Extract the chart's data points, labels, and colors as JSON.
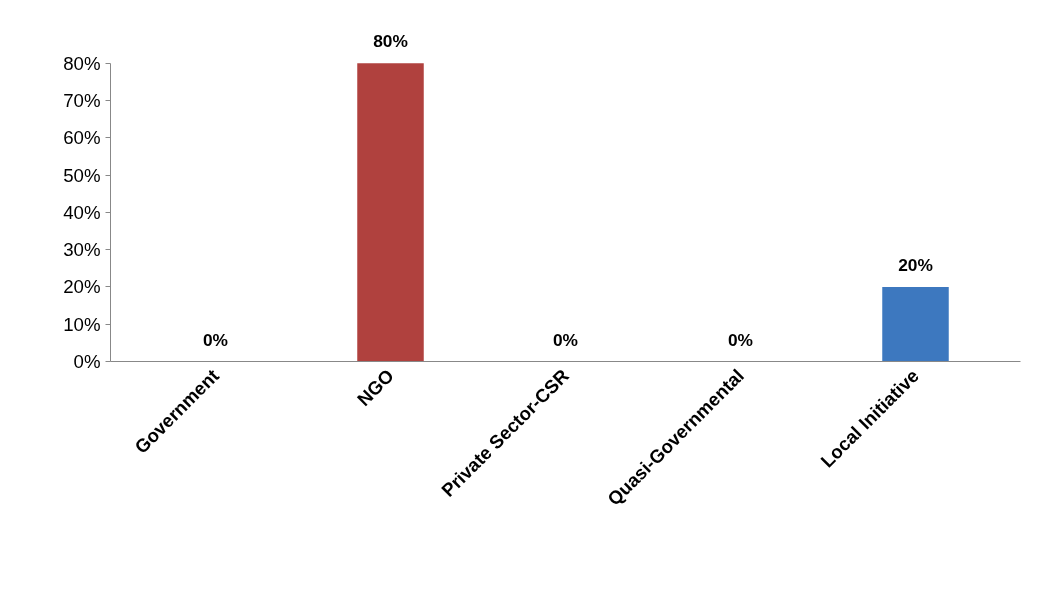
{
  "chart_data": {
    "type": "bar",
    "categories": [
      "Government",
      "NGO",
      "Private Sector-CSR",
      "Quasi-Governmental",
      "Local Initiative"
    ],
    "values": [
      0,
      80,
      0,
      0,
      20
    ],
    "colors": [
      "#3d78bf",
      "#b0413e",
      "#3d78bf",
      "#3d78bf",
      "#3d78bf"
    ],
    "value_labels": [
      "0%",
      "80%",
      "0%",
      "0%",
      "20%"
    ],
    "ylim": [
      0,
      80
    ],
    "yticks": [
      {
        "value": 0,
        "label": "0%"
      },
      {
        "value": 10,
        "label": "10%"
      },
      {
        "value": 20,
        "label": "20%"
      },
      {
        "value": 30,
        "label": "30%"
      },
      {
        "value": 40,
        "label": "40%"
      },
      {
        "value": 50,
        "label": "50%"
      },
      {
        "value": 60,
        "label": "60%"
      },
      {
        "value": 70,
        "label": "70%"
      },
      {
        "value": 80,
        "label": "80%"
      }
    ],
    "grid": false
  }
}
